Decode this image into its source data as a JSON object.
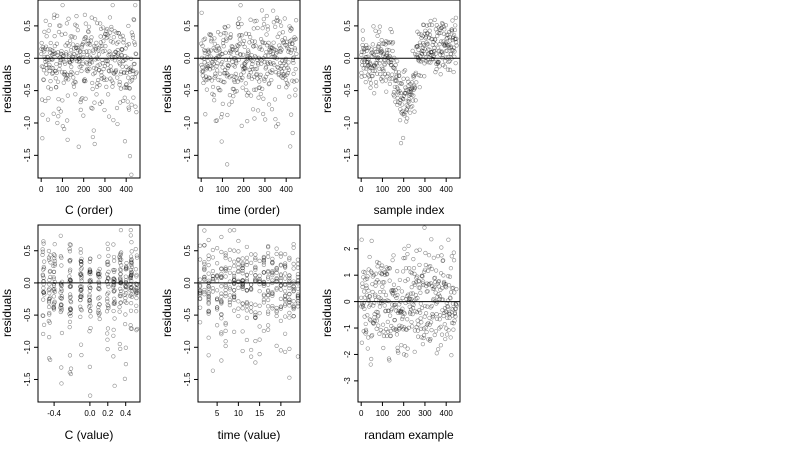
{
  "chart_data": [
    {
      "type": "scatter",
      "xlabel": "C (order)",
      "ylabel": "residuals",
      "xlim": [
        -15,
        465
      ],
      "ylim": [
        -1.85,
        0.9
      ],
      "xticks": [
        0,
        100,
        200,
        300,
        400
      ],
      "xtick_labels": [
        "0",
        "100",
        "200",
        "300",
        "400"
      ],
      "yticks": [
        -1.5,
        -1.0,
        -0.5,
        0.0,
        0.5
      ],
      "ytick_labels": [
        "-1.5",
        "-1.0",
        "-0.5",
        "0.0",
        "0.5"
      ],
      "hline": 0,
      "grid": false
    },
    {
      "type": "scatter",
      "xlabel": "time (order)",
      "ylabel": "residuals",
      "xlim": [
        -15,
        465
      ],
      "ylim": [
        -1.85,
        0.9
      ],
      "xticks": [
        0,
        100,
        200,
        300,
        400
      ],
      "xtick_labels": [
        "0",
        "100",
        "200",
        "300",
        "400"
      ],
      "yticks": [
        -1.5,
        -1.0,
        -0.5,
        0.0,
        0.5
      ],
      "ytick_labels": [
        "-1.5",
        "-1.0",
        "-0.5",
        "0.0",
        "0.5"
      ],
      "hline": 0,
      "grid": false
    },
    {
      "type": "scatter",
      "xlabel": "sample index",
      "ylabel": "residuals",
      "xlim": [
        -15,
        465
      ],
      "ylim": [
        -1.85,
        0.9
      ],
      "xticks": [
        0,
        100,
        200,
        300,
        400
      ],
      "xtick_labels": [
        "0",
        "100",
        "200",
        "300",
        "400"
      ],
      "yticks": [
        -1.5,
        -1.0,
        -0.5,
        0.0,
        0.5
      ],
      "ytick_labels": [
        "-1.5",
        "-1.0",
        "-0.5",
        "0.0",
        "0.5"
      ],
      "hline": 0,
      "grid": false
    },
    {
      "type": "scatter",
      "xlabel": "C (value)",
      "ylabel": "residuals",
      "xlim": [
        -0.58,
        0.56
      ],
      "ylim": [
        -1.85,
        0.9
      ],
      "xticks": [
        -0.4,
        0.0,
        0.2,
        0.4
      ],
      "xtick_labels": [
        "-0.4",
        "0.0",
        "0.2",
        "0.4"
      ],
      "yticks": [
        -1.5,
        -1.0,
        -0.5,
        0.0,
        0.5
      ],
      "ytick_labels": [
        "-1.5",
        "-1.0",
        "-0.5",
        "0.0",
        "0.5"
      ],
      "hline": 0,
      "grid": false
    },
    {
      "type": "scatter",
      "xlabel": "time (value)",
      "ylabel": "residuals",
      "xlim": [
        0.5,
        24.5
      ],
      "ylim": [
        -1.85,
        0.9
      ],
      "xticks": [
        5,
        10,
        15,
        20
      ],
      "xtick_labels": [
        "5",
        "10",
        "15",
        "20"
      ],
      "yticks": [
        -1.5,
        -1.0,
        -0.5,
        0.0,
        0.5
      ],
      "ytick_labels": [
        "-1.5",
        "-1.0",
        "-0.5",
        "0.0",
        "0.5"
      ],
      "hline": 0,
      "grid": false
    },
    {
      "type": "scatter",
      "xlabel": "randam example",
      "ylabel": "residuals",
      "xlim": [
        -15,
        465
      ],
      "ylim": [
        -3.8,
        2.9
      ],
      "xticks": [
        0,
        100,
        200,
        300,
        400
      ],
      "xtick_labels": [
        "0",
        "100",
        "200",
        "300",
        "400"
      ],
      "yticks": [
        -3,
        -2,
        -1,
        0,
        1,
        2
      ],
      "ytick_labels": [
        "-3",
        "-2",
        "-1",
        "0",
        "1",
        "2"
      ],
      "hline": 0,
      "grid": false
    }
  ]
}
